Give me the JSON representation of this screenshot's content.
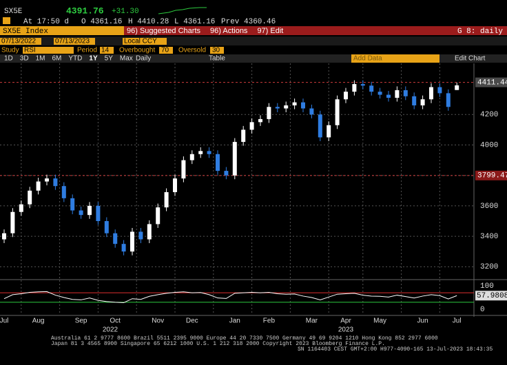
{
  "header": {
    "ticker": "SX5E",
    "last": "4391.76",
    "change": "+31.30",
    "at": "At 17:50 d",
    "open": "O 4361.16",
    "high": "H 4410.28",
    "low": "L 4361.16",
    "prev": "Prev 4360.46"
  },
  "toolbar": {
    "security": "SX5E Index",
    "menu": [
      "96) Suggested Charts",
      "96) Actions",
      "97) Edit"
    ],
    "page": "G 8: daily"
  },
  "controls": {
    "start": "07/13/2022",
    "end": "07/13/2023",
    "currency": "Local CCY",
    "study_label": "Study",
    "study": "RSI",
    "period_label": "Period",
    "period": "14",
    "overbought_label": "Overbought",
    "overbought": "70",
    "oversold_label": "Oversold",
    "oversold": "30",
    "ranges": [
      "1D",
      "3D",
      "1M",
      "6M",
      "YTD",
      "1Y",
      "5Y",
      "Max"
    ],
    "frequency": "Daily",
    "table": "Table",
    "add_data": "Add Data",
    "edit_chart": "Edit Chart"
  },
  "chart_data": [
    {
      "type": "candlestick",
      "categories": [
        "Jul",
        null,
        null,
        null,
        "Aug",
        null,
        null,
        null,
        null,
        "Sep",
        null,
        null,
        null,
        "Oct",
        null,
        null,
        null,
        null,
        "Nov",
        null,
        null,
        null,
        "Dec",
        null,
        null,
        null,
        null,
        "Jan",
        null,
        null,
        null,
        "Feb",
        null,
        null,
        null,
        null,
        "Mar",
        null,
        null,
        null,
        "Apr",
        null,
        null,
        null,
        "May",
        null,
        null,
        null,
        null,
        "Jun",
        null,
        null,
        null,
        "Jul"
      ],
      "years": [
        "2022",
        "2023"
      ],
      "open": [
        3380,
        3420,
        3560,
        3610,
        3700,
        3760,
        3780,
        3730,
        3650,
        3570,
        3540,
        3600,
        3500,
        3420,
        3350,
        3300,
        3430,
        3380,
        3480,
        3590,
        3690,
        3780,
        3900,
        3940,
        3960,
        3940,
        3830,
        3800,
        4020,
        4100,
        4150,
        4170,
        4250,
        4240,
        4260,
        4280,
        4240,
        4200,
        4050,
        4130,
        4300,
        4350,
        4400,
        4390,
        4350,
        4330,
        4310,
        4360,
        4320,
        4260,
        4300,
        4380,
        4340,
        4361.16
      ],
      "high": [
        3445,
        3585,
        3635,
        3725,
        3785,
        3805,
        3805,
        3755,
        3675,
        3595,
        3625,
        3625,
        3525,
        3445,
        3375,
        3455,
        3455,
        3505,
        3615,
        3715,
        3805,
        3925,
        3965,
        3985,
        3985,
        3965,
        3855,
        4045,
        4125,
        4175,
        4195,
        4275,
        4275,
        4285,
        4305,
        4305,
        4265,
        4225,
        4155,
        4325,
        4375,
        4425,
        4425,
        4415,
        4375,
        4355,
        4385,
        4385,
        4345,
        4325,
        4405,
        4405,
        4365,
        4410.28
      ],
      "low": [
        3355,
        3395,
        3535,
        3585,
        3675,
        3735,
        3705,
        3625,
        3545,
        3515,
        3515,
        3475,
        3395,
        3325,
        3275,
        3275,
        3355,
        3355,
        3455,
        3565,
        3665,
        3755,
        3875,
        3915,
        3915,
        3805,
        3775,
        3775,
        3995,
        4075,
        4125,
        4145,
        4215,
        4215,
        4235,
        4215,
        4175,
        4025,
        4025,
        4105,
        4275,
        4325,
        4365,
        4325,
        4305,
        4285,
        4285,
        4295,
        4235,
        4235,
        4275,
        4315,
        4225,
        4361.16
      ],
      "close": [
        3420,
        3560,
        3610,
        3700,
        3760,
        3780,
        3730,
        3650,
        3570,
        3540,
        3600,
        3500,
        3420,
        3350,
        3300,
        3430,
        3380,
        3480,
        3590,
        3690,
        3780,
        3900,
        3940,
        3960,
        3940,
        3830,
        3800,
        4020,
        4100,
        4150,
        4170,
        4250,
        4240,
        4260,
        4280,
        4240,
        4200,
        4050,
        4130,
        4300,
        4350,
        4400,
        4390,
        4350,
        4330,
        4310,
        4360,
        4320,
        4260,
        4300,
        4380,
        4340,
        4250,
        4391.76
      ],
      "up_color": "#ffffff",
      "down_color": "#2f7de1",
      "ylim": [
        3120,
        4500
      ],
      "yticks": [
        3200,
        3400,
        3600,
        3800,
        4000,
        4200
      ],
      "grid": true,
      "hlines": [
        4411.44,
        3799.47
      ],
      "hline_color": "#d23c3c"
    },
    {
      "type": "line",
      "name": "RSI",
      "color": "#ffffff",
      "values": [
        45,
        62,
        66,
        72,
        74,
        75,
        60,
        50,
        42,
        40,
        48,
        38,
        33,
        30,
        28,
        45,
        42,
        55,
        62,
        68,
        72,
        74,
        70,
        71,
        62,
        48,
        46,
        68,
        70,
        72,
        70,
        72,
        66,
        64,
        65,
        56,
        50,
        40,
        52,
        64,
        66,
        68,
        60,
        56,
        55,
        52,
        60,
        54,
        48,
        56,
        62,
        58,
        44,
        57.9808
      ],
      "ylim": [
        -20,
        120
      ],
      "yticks": [
        0,
        100
      ],
      "overbought_color": "#e03030",
      "oversold_color": "#2ecc40"
    }
  ],
  "footer": [
    "Australia 61 2 9777 8600 Brazil 5511 2395 9000 Europe 44 20 7330 7500 Germany 49 69 9204 1210 Hong Kong 852 2977 6000",
    "Japan 81 3 4565 8900        Singapore 65 6212 1000        U.S. 1 212 318 2000        Copyright 2023 Bloomberg Finance L.P.",
    "SN 1164403 CEST GMT+2:00 H977-4090-165 13-Jul-2023 18:43:35"
  ]
}
